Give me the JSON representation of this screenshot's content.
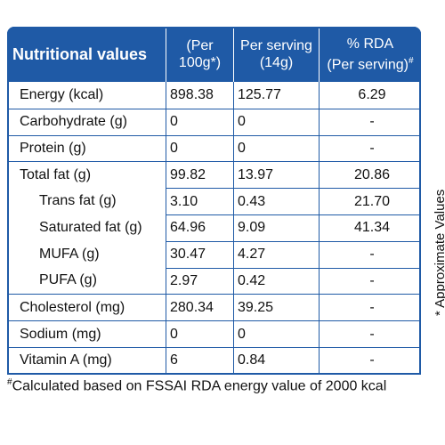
{
  "table": {
    "header": [
      {
        "lines": [
          "Nutritional values"
        ]
      },
      {
        "lines": [
          "(Per",
          "100g*)"
        ]
      },
      {
        "lines": [
          "Per serving",
          "(14g)"
        ]
      },
      {
        "lines": [
          "% RDA",
          "(Per serving)"
        ],
        "sup": "#"
      }
    ],
    "rows": [
      {
        "cells": [
          "Energy (kcal)",
          "898.38",
          "125.77",
          "6.29"
        ],
        "sub": false
      },
      {
        "cells": [
          "Carbohydrate (g)",
          "0",
          "0",
          "-"
        ],
        "sub": false
      },
      {
        "cells": [
          "Protein (g)",
          "0",
          "0",
          "-"
        ],
        "sub": false
      },
      {
        "cells": [
          "Total fat (g)",
          "99.82",
          "13.97",
          "20.86"
        ],
        "sub": false
      },
      {
        "cells": [
          "Trans fat (g)",
          "3.10",
          "0.43",
          "21.70"
        ],
        "sub": true
      },
      {
        "cells": [
          "Saturated fat (g)",
          "64.96",
          "9.09",
          "41.34"
        ],
        "sub": true
      },
      {
        "cells": [
          "MUFA (g)",
          "30.47",
          "4.27",
          "-"
        ],
        "sub": true
      },
      {
        "cells": [
          "PUFA (g)",
          "2.97",
          "0.42",
          "-"
        ],
        "sub": true
      },
      {
        "cells": [
          "Cholesterol (mg)",
          "280.34",
          "39.25",
          "-"
        ],
        "sub": false
      },
      {
        "cells": [
          "Sodium (mg)",
          "0",
          "0",
          "-"
        ],
        "sub": false
      },
      {
        "cells": [
          "Vitamin A (mg)",
          "6",
          "0.84",
          "-"
        ],
        "sub": false
      }
    ]
  },
  "footnote": {
    "mark": "#",
    "text": "Calculated based on FSSAI RDA energy value of 2000 kcal"
  },
  "side_note": "* Approximate Values"
}
